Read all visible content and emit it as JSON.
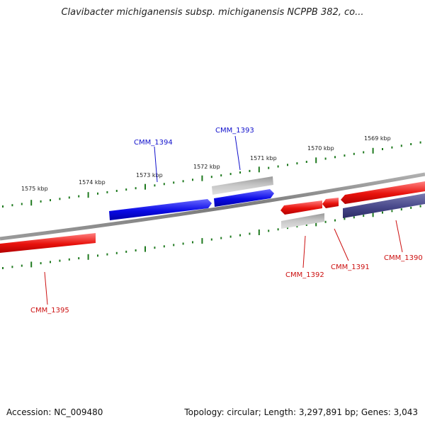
{
  "title": "Clavibacter michiganensis subsp. michiganensis NCPPB 382, co...",
  "footer": {
    "accession": "Accession: NC_009480",
    "summary": "Topology: circular; Length: 3,297,891 bp; Genes: 3,043"
  },
  "ruler": {
    "labels": [
      "1575 kbp",
      "1574 kbp",
      "1573 kbp",
      "1572 kbp",
      "1571 kbp",
      "1570 kbp",
      "1569 kbp"
    ],
    "tick_color": "#1f7a1f"
  },
  "genes": [
    {
      "name": "CMM_1395",
      "strand": "reverse",
      "color": "#e8120c"
    },
    {
      "name": "CMM_1394",
      "strand": "forward",
      "color": "#0a0ae6"
    },
    {
      "name": "CMM_1393",
      "strand": "forward",
      "color": "#0a0ae6"
    },
    {
      "name": "CMM_1392",
      "strand": "reverse",
      "color": "#e8120c"
    },
    {
      "name": "CMM_1391",
      "strand": "reverse",
      "color": "#e8120c"
    },
    {
      "name": "CMM_1390",
      "strand": "reverse",
      "color": "#e8120c"
    }
  ],
  "colors": {
    "forward_label": "#1010cc",
    "reverse_label": "#cc1010",
    "backbone": "#8a8a8a",
    "pseudo_gene": "#a8a8a8",
    "dark_gene": "#4a4a8c"
  }
}
